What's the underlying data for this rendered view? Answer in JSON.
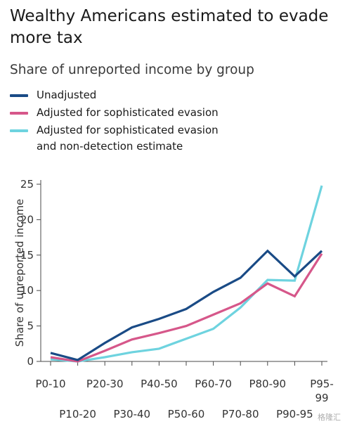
{
  "title": "Wealthy Americans estimated to evade more tax",
  "subtitle": "Share of unreported income by group",
  "watermark": "格隆汇",
  "colors": {
    "axis": "#4a4a4a",
    "grid": "#e6e6e6",
    "text": "#1a1a1a"
  },
  "chart_data": {
    "type": "line",
    "title": "Wealthy Americans estimated to evade more tax",
    "subtitle": "Share of unreported income by group",
    "xlabel": "",
    "ylabel": "Share of unreported income",
    "ylim": [
      0,
      25
    ],
    "yticks": [
      0,
      5,
      10,
      15,
      20,
      25
    ],
    "grid": false,
    "legend": "top-left",
    "categories": [
      "P0-10",
      "P10-20",
      "P20-30",
      "P30-40",
      "P40-50",
      "P50-60",
      "P60-70",
      "P70-80",
      "P80-90",
      "P90-95",
      "P95-99"
    ],
    "series": [
      {
        "name": "Unadjusted",
        "color": "#1a4b86",
        "values": [
          1.2,
          0.2,
          2.6,
          4.8,
          6.0,
          7.4,
          9.8,
          11.8,
          15.6,
          12.0,
          15.6
        ]
      },
      {
        "name": "Adjusted for sophisticated evasion",
        "color": "#d6578a",
        "values": [
          0.6,
          0.0,
          1.5,
          3.1,
          4.0,
          5.0,
          6.6,
          8.2,
          11.0,
          9.2,
          15.2
        ]
      },
      {
        "name": "Adjusted for sophisticated evasion\nand non-detection estimate",
        "color": "#6ed3df",
        "values": [
          0.3,
          0.0,
          0.6,
          1.3,
          1.8,
          3.2,
          4.6,
          7.6,
          11.5,
          11.4,
          24.8
        ]
      }
    ]
  }
}
